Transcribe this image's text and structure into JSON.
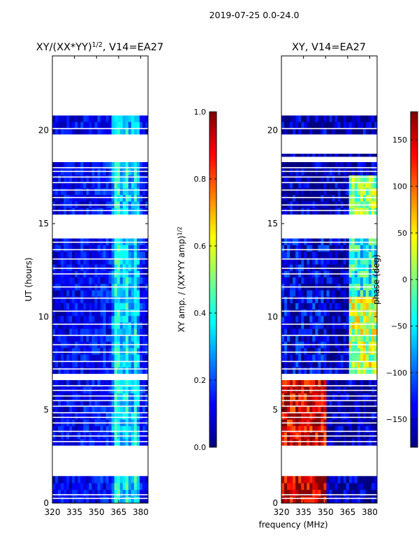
{
  "figure": {
    "suptitle": "2019-07-25 0.0-24.0",
    "shared_xlabel": "frequency (MHz)"
  },
  "colors": {
    "jet_stops": [
      "#00007f",
      "#0000ff",
      "#007fff",
      "#00ffff",
      "#7fff7f",
      "#ffff00",
      "#ff7f00",
      "#ff0000",
      "#7f0000"
    ],
    "frame": "#000000",
    "background": "#ffffff",
    "gap": "#ffffff"
  },
  "chart_data": [
    {
      "type": "heatmap",
      "title_prefix": "XY/(XX*YY)",
      "title_sup": "1/2",
      "title_suffix": ", V14=EA27",
      "ylabel": "UT (hours)",
      "xlim": [
        320,
        385
      ],
      "ylim": [
        0,
        24
      ],
      "xticks": [
        320,
        335,
        350,
        365,
        380
      ],
      "yticks": [
        0,
        5,
        10,
        15,
        20
      ],
      "colorbar": {
        "label_prefix": "XY amp. / (XX*YY amp)",
        "label_sup": "1/2",
        "range": [
          0,
          1
        ],
        "ticks": [
          "0.0",
          "0.2",
          "0.4",
          "0.6",
          "0.8",
          "1.0"
        ],
        "tick_values": [
          0,
          0.2,
          0.4,
          0.6,
          0.8,
          1.0
        ]
      },
      "data_blocks_ut": [
        [
          0.0,
          1.45
        ],
        [
          3.1,
          6.6
        ],
        [
          6.95,
          14.2
        ],
        [
          15.5,
          18.3
        ],
        [
          19.8,
          20.8
        ]
      ],
      "flagged_lines_ut": [
        0.25,
        0.45,
        3.3,
        3.6,
        3.85,
        4.3,
        4.6,
        4.85,
        5.2,
        5.5,
        5.75,
        6.05,
        6.3,
        7.2,
        7.6,
        8.1,
        8.5,
        9.0,
        9.6,
        10.3,
        11.0,
        11.6,
        12.3,
        12.6,
        13.1,
        13.6,
        14.0,
        15.7,
        16.0,
        16.4,
        16.8,
        17.2,
        17.5,
        17.8,
        18.0,
        20.1
      ],
      "channel_profile": {
        "freq_mhz": [
          320,
          342,
          360,
          362,
          364,
          366,
          368,
          370,
          372,
          374,
          376,
          378,
          380,
          382,
          385
        ],
        "mean_value": [
          0.1,
          0.12,
          0.14,
          0.35,
          0.45,
          0.35,
          0.25,
          0.45,
          0.3,
          0.25,
          0.42,
          0.32,
          0.15,
          0.12,
          0.1
        ]
      }
    },
    {
      "type": "heatmap",
      "title": "XY, V14=EA27",
      "xlim": [
        320,
        385
      ],
      "ylim": [
        0,
        24
      ],
      "xticks": [
        320,
        335,
        350,
        365,
        380
      ],
      "yticks": [
        0,
        5,
        10,
        15,
        20
      ],
      "colorbar": {
        "label": "phase (deg)",
        "range": [
          -180,
          180
        ],
        "ticks": [
          "−150",
          "−100",
          "−50",
          "0",
          "50",
          "100",
          "150"
        ],
        "tick_values": [
          -150,
          -100,
          -50,
          0,
          50,
          100,
          150
        ]
      },
      "data_blocks_ut": [
        [
          0.0,
          1.45
        ],
        [
          3.1,
          6.6
        ],
        [
          6.95,
          14.2
        ],
        [
          15.5,
          18.3
        ],
        [
          18.6,
          18.75
        ],
        [
          19.8,
          20.8
        ]
      ],
      "flagged_lines_ut": [
        0.25,
        0.45,
        3.3,
        3.6,
        3.85,
        4.3,
        4.6,
        4.85,
        5.2,
        5.5,
        5.75,
        6.05,
        6.3,
        7.2,
        7.6,
        8.1,
        8.5,
        9.0,
        9.6,
        10.3,
        11.0,
        11.6,
        12.3,
        12.6,
        13.1,
        13.6,
        14.0,
        15.7,
        16.0,
        16.4,
        16.8,
        17.2,
        17.5,
        17.8,
        18.0,
        20.1
      ],
      "phase_regions": [
        {
          "freq_range_mhz": [
            320,
            350
          ],
          "ut_range": [
            0.0,
            1.45
          ],
          "mean_phase_deg": 160
        },
        {
          "freq_range_mhz": [
            320,
            350
          ],
          "ut_range": [
            3.1,
            6.6
          ],
          "mean_phase_deg": 150
        },
        {
          "freq_range_mhz": [
            320,
            355
          ],
          "ut_range": [
            6.95,
            14.2
          ],
          "mean_phase_deg": -150
        },
        {
          "freq_range_mhz": [
            365,
            385
          ],
          "ut_range": [
            6.95,
            11.0
          ],
          "mean_phase_deg": 20
        },
        {
          "freq_range_mhz": [
            365,
            385
          ],
          "ut_range": [
            11.0,
            14.2
          ],
          "mean_phase_deg": -40
        },
        {
          "freq_range_mhz": [
            365,
            385
          ],
          "ut_range": [
            15.5,
            17.5
          ],
          "mean_phase_deg": 10
        }
      ]
    }
  ]
}
